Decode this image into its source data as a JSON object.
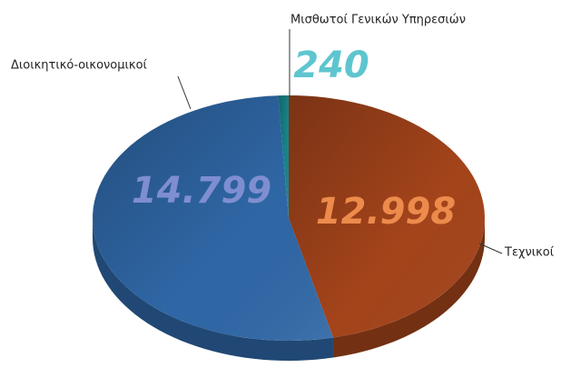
{
  "chart_data": {
    "type": "pie",
    "categories": [
      "Τεχνικοί",
      "Διοικητικό-οικονομικοί",
      "Μισθωτοί Γενικών Υπηρεσιών"
    ],
    "values": [
      12998,
      14799,
      240
    ],
    "value_labels": [
      "12.998",
      "14.799",
      "240"
    ],
    "colors": [
      "#a4441b",
      "#2f67a6",
      "#17858a"
    ],
    "label_colors": [
      "#ec8b4c",
      "#7f8ed0",
      "#5ec5cf"
    ]
  }
}
